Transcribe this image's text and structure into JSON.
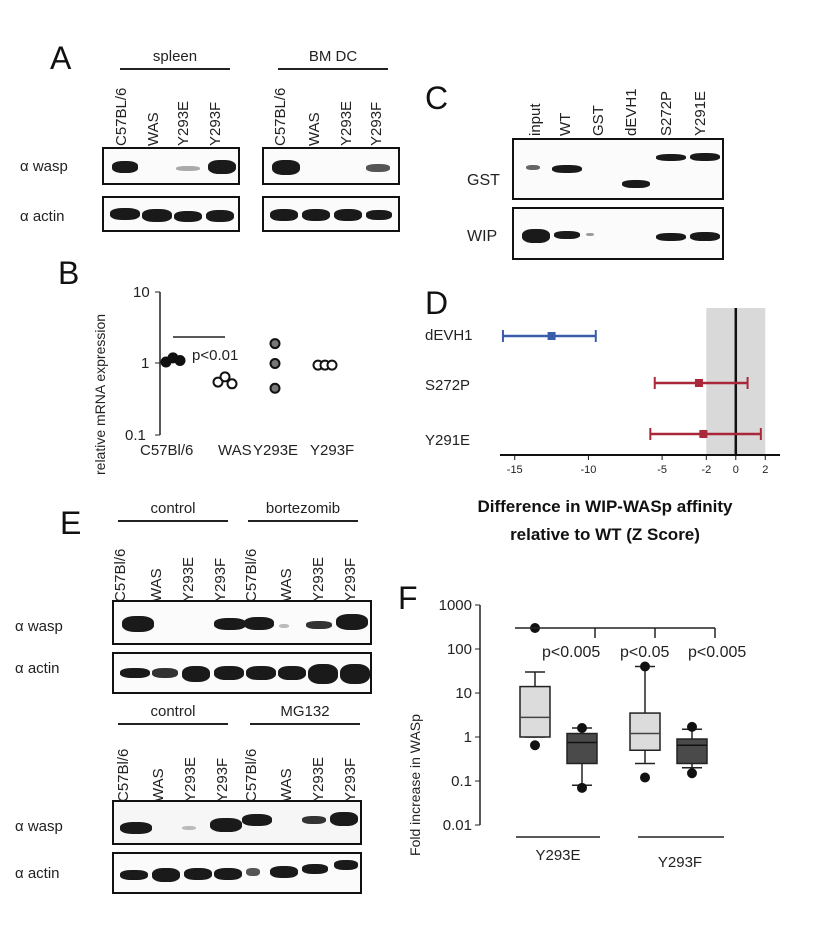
{
  "panelA": {
    "label": "A",
    "groups": [
      "spleen",
      "BM DC"
    ],
    "lanes_left": [
      "C57BL/6",
      "WAS",
      "Y293E",
      "Y293F"
    ],
    "lanes_right": [
      "C57BL/6",
      "WAS",
      "Y293E",
      "Y293F"
    ],
    "rows": [
      "α wasp",
      "α actin"
    ]
  },
  "panelB": {
    "label": "B",
    "ylabel": "relative mRNA expression",
    "yticks": [
      "10",
      "1",
      "0.1"
    ],
    "categories": [
      "C57Bl/6",
      "WAS",
      "Y293E",
      "Y293F"
    ],
    "annotation": "p<0.01"
  },
  "panelC": {
    "label": "C",
    "lanes": [
      "input",
      "WT",
      "GST",
      "dEVH1",
      "S272P",
      "Y291E"
    ],
    "rows": [
      "GST",
      "WIP"
    ]
  },
  "panelD": {
    "label": "D",
    "rows": [
      "dEVH1",
      "S272P",
      "Y291E"
    ],
    "xticks": [
      "-15",
      "-10",
      "-5",
      "-2",
      "0",
      "2"
    ],
    "xlabel_line1": "Difference in WIP-WASp affinity",
    "xlabel_line2": "relative to WT (Z Score)"
  },
  "panelE": {
    "label": "E",
    "top_groups": [
      "control",
      "bortezomib"
    ],
    "bottom_groups": [
      "control",
      "MG132"
    ],
    "lanes": [
      "C57Bl/6",
      "WAS",
      "Y293E",
      "Y293F"
    ],
    "rows": [
      "α wasp",
      "α actin"
    ]
  },
  "panelF": {
    "label": "F",
    "ylabel": "Fold increase in WASp",
    "yticks": [
      "1000",
      "100",
      "10",
      "1",
      "0.1",
      "0.01"
    ],
    "pvalues": [
      "p<0.005",
      "p<0.05",
      "p<0.005"
    ],
    "xgroups": [
      "Y293E",
      "Y293F"
    ]
  },
  "chart_data": [
    {
      "type": "scatter",
      "ylabel": "relative mRNA expression",
      "yscale": "log",
      "ylim": [
        0.1,
        10
      ],
      "categories": [
        "C57Bl/6",
        "WAS",
        "Y293E",
        "Y293F"
      ],
      "series": [
        {
          "category": "C57Bl/6",
          "values": [
            1.05,
            1.2,
            1.1
          ],
          "filled": "black"
        },
        {
          "category": "WAS",
          "values": [
            0.55,
            0.65,
            0.52
          ],
          "filled": "open"
        },
        {
          "category": "Y293E",
          "values": [
            1.9,
            1.0,
            0.45
          ],
          "filled": "gray"
        },
        {
          "category": "Y293F",
          "values": [
            0.95,
            0.95,
            0.95
          ],
          "filled": "open"
        }
      ],
      "annotation": "p<0.01"
    },
    {
      "type": "scatter",
      "xlabel": "Difference in WIP-WASp affinity relative to WT (Z Score)",
      "xlim": [
        -16,
        3
      ],
      "shaded_range": [
        -2,
        2
      ],
      "rows": [
        {
          "name": "dEVH1",
          "mean": -12.5,
          "low": -15.8,
          "high": -9.5,
          "color": "#3b5bab"
        },
        {
          "name": "S272P",
          "mean": -2.5,
          "low": -5.5,
          "high": 0.8,
          "color": "#a8283a"
        },
        {
          "name": "Y291E",
          "mean": -2.2,
          "low": -5.8,
          "high": 1.7,
          "color": "#a8283a"
        }
      ]
    },
    {
      "type": "box",
      "ylabel": "Fold increase in WASp",
      "yscale": "log",
      "ylim": [
        0.01,
        1000
      ],
      "boxes": [
        {
          "group": "Y293E",
          "fill": "#dcdcdc",
          "whisker_low": 1.0,
          "q1": 1.0,
          "median": 2.8,
          "q3": 14,
          "whisker_high": 30,
          "outliers": [
            300,
            0.65
          ]
        },
        {
          "group": "Y293E",
          "fill": "#4a4a4a",
          "whisker_low": 0.08,
          "q1": 0.25,
          "median": 0.75,
          "q3": 1.2,
          "whisker_high": 1.6,
          "outliers": [
            1.6,
            0.07
          ]
        },
        {
          "group": "Y293F",
          "fill": "#dcdcdc",
          "whisker_low": 0.25,
          "q1": 0.5,
          "median": 1.2,
          "q3": 3.5,
          "whisker_high": 40,
          "outliers": [
            40,
            0.12
          ]
        },
        {
          "group": "Y293F",
          "fill": "#4a4a4a",
          "whisker_low": 0.2,
          "q1": 0.25,
          "median": 0.65,
          "q3": 0.9,
          "whisker_high": 1.5,
          "outliers": [
            1.7,
            0.15
          ]
        }
      ],
      "pvalues": [
        "p<0.005",
        "p<0.05",
        "p<0.005"
      ]
    }
  ]
}
